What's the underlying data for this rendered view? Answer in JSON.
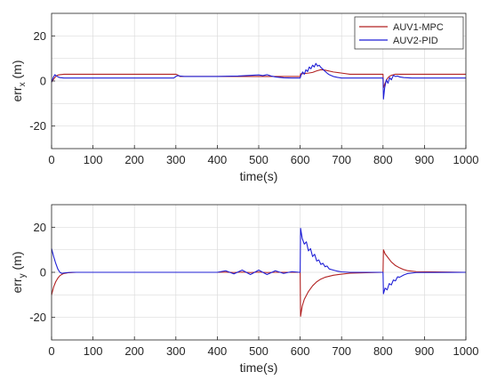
{
  "chart_data": [
    {
      "type": "line",
      "ylabel_main": "err",
      "ylabel_sub": "x",
      "ylabel_unit": " (m)",
      "xlabel": "time(s)",
      "xlim": [
        0,
        1000
      ],
      "ylim": [
        -30,
        30
      ],
      "xticks": [
        "0",
        "100",
        "200",
        "300",
        "400",
        "500",
        "600",
        "700",
        "800",
        "900",
        "1000"
      ],
      "yticks": [
        "20",
        "0",
        "-20"
      ],
      "grid": true,
      "legend": "top-right",
      "series": [
        {
          "name": "AUV1-MPC",
          "color": "#b22222",
          "x": [
            0,
            5,
            10,
            15,
            20,
            25,
            30,
            300,
            305,
            310,
            590,
            600,
            601,
            605,
            610,
            620,
            630,
            640,
            650,
            660,
            680,
            700,
            720,
            800,
            801,
            805,
            810,
            815,
            820,
            830,
            840,
            860,
            1000
          ],
          "y": [
            -0.5,
            0.8,
            2.0,
            2.6,
            2.8,
            2.9,
            3.0,
            3.0,
            2.6,
            2.0,
            2.0,
            2.0,
            3.2,
            3.2,
            3.3,
            3.5,
            3.8,
            4.5,
            5.0,
            4.8,
            4.0,
            3.5,
            3.0,
            3.0,
            -3.0,
            -1.0,
            1.0,
            2.0,
            2.5,
            3.0,
            3.0,
            3.0,
            3.0
          ]
        },
        {
          "name": "AUV2-PID",
          "color": "#1f1fd6",
          "x": [
            0,
            4,
            8,
            12,
            16,
            20,
            25,
            30,
            40,
            50,
            60,
            80,
            100,
            200,
            295,
            300,
            305,
            310,
            320,
            400,
            450,
            480,
            500,
            510,
            520,
            530,
            540,
            560,
            580,
            595,
            600,
            602,
            606,
            610,
            614,
            618,
            622,
            626,
            630,
            634,
            638,
            642,
            646,
            650,
            655,
            660,
            665,
            670,
            680,
            690,
            700,
            720,
            760,
            795,
            800,
            801,
            804,
            808,
            812,
            816,
            820,
            825,
            830,
            835,
            840,
            850,
            870,
            900,
            1000
          ],
          "y": [
            -0.5,
            1.5,
            2.8,
            2.2,
            1.8,
            1.5,
            1.4,
            1.3,
            1.3,
            1.3,
            1.3,
            1.3,
            1.3,
            1.3,
            1.3,
            2.0,
            2.4,
            2.2,
            2.0,
            2.0,
            2.2,
            2.5,
            2.7,
            2.4,
            2.8,
            2.2,
            1.8,
            1.4,
            1.3,
            1.3,
            1.3,
            2.5,
            4.0,
            3.0,
            5.0,
            4.2,
            6.2,
            5.4,
            7.0,
            6.2,
            7.8,
            6.6,
            7.0,
            6.0,
            5.2,
            4.3,
            3.5,
            2.8,
            2.0,
            1.6,
            1.3,
            1.3,
            1.3,
            1.3,
            1.3,
            -8.0,
            -3.0,
            0.5,
            -1.0,
            1.5,
            0.5,
            2.5,
            2.0,
            2.2,
            1.8,
            1.5,
            1.3,
            1.3,
            1.3
          ]
        }
      ]
    },
    {
      "type": "line",
      "ylabel_main": "err",
      "ylabel_sub": "y",
      "ylabel_unit": " (m)",
      "xlabel": "time(s)",
      "xlim": [
        0,
        1000
      ],
      "ylim": [
        -30,
        30
      ],
      "xticks": [
        "0",
        "100",
        "200",
        "300",
        "400",
        "500",
        "600",
        "700",
        "800",
        "900",
        "1000"
      ],
      "yticks": [
        "20",
        "0",
        "-20"
      ],
      "grid": true,
      "series": [
        {
          "name": "AUV1-MPC",
          "color": "#b22222",
          "x": [
            0,
            5,
            10,
            15,
            20,
            25,
            30,
            40,
            50,
            60,
            300,
            400,
            420,
            440,
            460,
            480,
            500,
            520,
            540,
            560,
            580,
            599,
            600,
            601,
            605,
            610,
            620,
            630,
            640,
            650,
            660,
            680,
            700,
            720,
            799,
            800,
            801,
            805,
            810,
            815,
            820,
            830,
            840,
            850,
            860,
            880,
            1000
          ],
          "y": [
            -10.0,
            -6.5,
            -4.2,
            -2.6,
            -1.5,
            -0.9,
            -0.5,
            -0.2,
            -0.1,
            0.0,
            0.0,
            0.0,
            0.1,
            -0.1,
            0.1,
            -0.1,
            0.1,
            -0.1,
            0.0,
            0.0,
            0.0,
            0.0,
            0.0,
            -19.5,
            -15.0,
            -12.0,
            -8.5,
            -6.0,
            -4.2,
            -3.0,
            -2.2,
            -1.3,
            -0.8,
            -0.4,
            0.0,
            0.0,
            10.0,
            8.2,
            7.0,
            5.8,
            4.6,
            3.0,
            2.0,
            1.2,
            0.7,
            0.3,
            0.0
          ]
        },
        {
          "name": "AUV2-PID",
          "color": "#1f1fd6",
          "x": [
            0,
            5,
            10,
            15,
            20,
            25,
            30,
            40,
            50,
            60,
            300,
            400,
            420,
            440,
            460,
            480,
            500,
            520,
            540,
            560,
            580,
            599,
            600,
            601,
            605,
            610,
            615,
            620,
            625,
            630,
            635,
            640,
            645,
            650,
            655,
            660,
            665,
            670,
            680,
            690,
            700,
            720,
            799,
            800,
            801,
            805,
            810,
            815,
            820,
            825,
            830,
            835,
            840,
            850,
            860,
            880,
            1000
          ],
          "y": [
            10.5,
            7.0,
            4.0,
            1.5,
            0.0,
            -0.5,
            -0.3,
            -0.1,
            0.0,
            0.0,
            0.0,
            0.0,
            0.7,
            -0.7,
            1.0,
            -1.0,
            1.0,
            -1.0,
            0.7,
            -0.5,
            0.3,
            0.0,
            0.0,
            19.5,
            15.0,
            12.5,
            13.5,
            9.5,
            10.5,
            7.0,
            8.0,
            5.0,
            5.5,
            3.5,
            4.0,
            2.5,
            2.8,
            1.5,
            1.0,
            0.5,
            0.2,
            0.0,
            0.0,
            0.0,
            -9.5,
            -7.0,
            -7.8,
            -5.0,
            -5.6,
            -3.4,
            -3.8,
            -2.0,
            -2.2,
            -1.2,
            -0.5,
            -0.1,
            0.0
          ]
        }
      ]
    }
  ]
}
